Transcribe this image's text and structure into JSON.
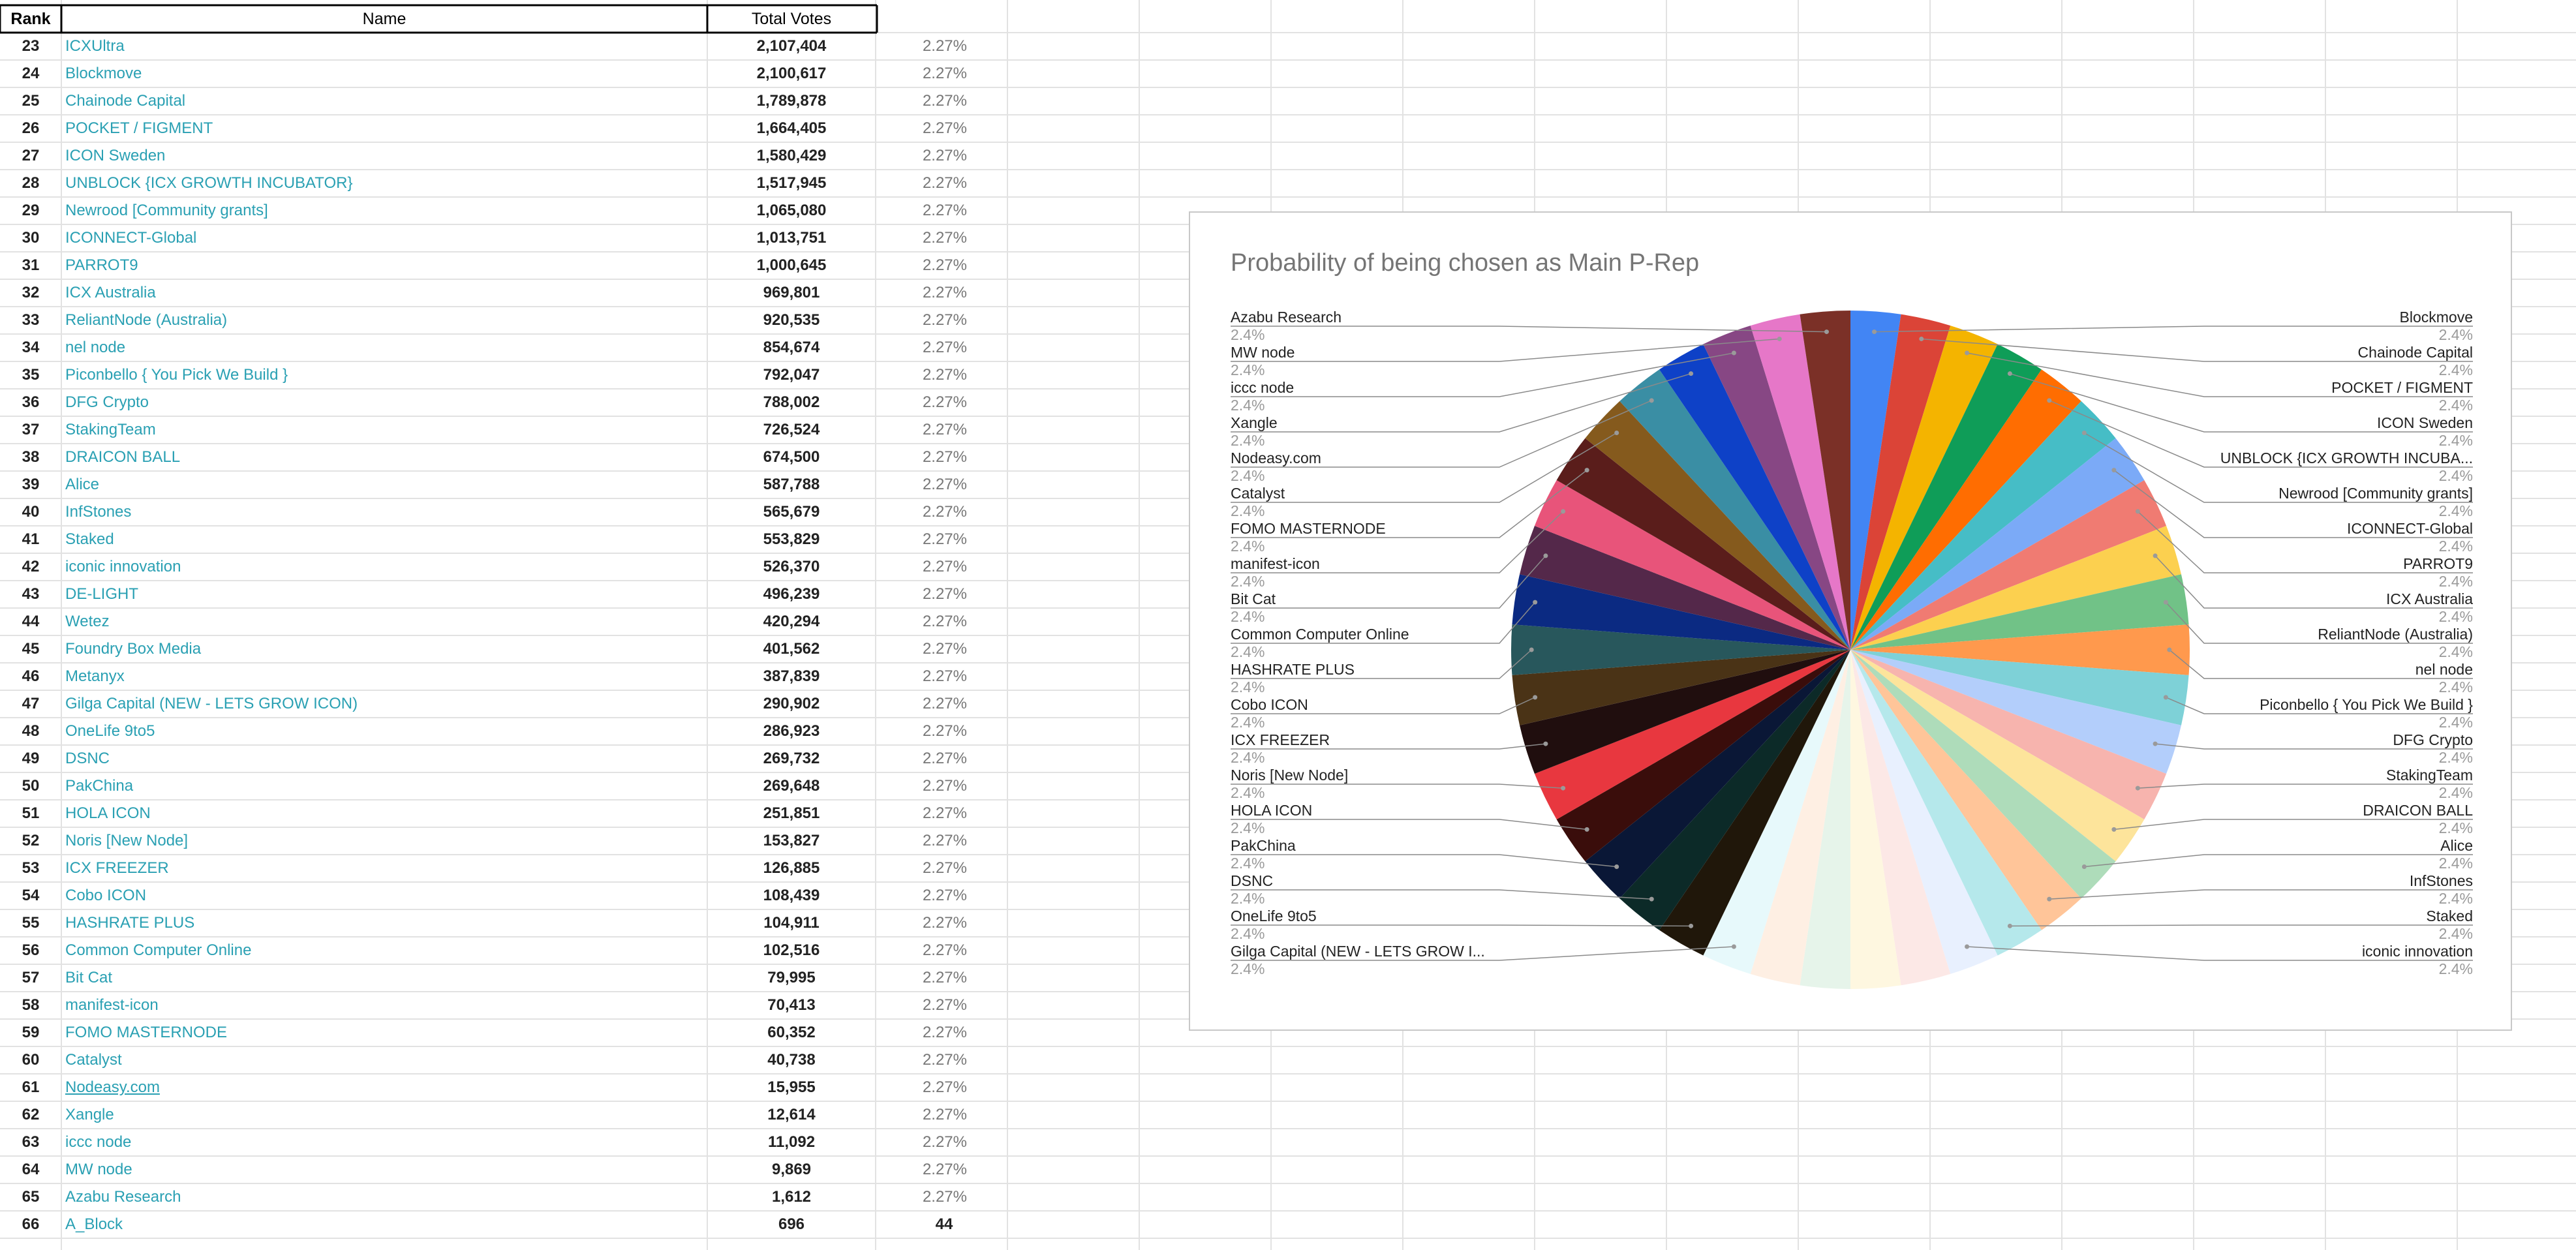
{
  "sheet": {
    "headers": {
      "rank": "Rank",
      "name": "Name",
      "votes": "Total Votes"
    },
    "rows": [
      {
        "rank": "23",
        "name": "ICXUltra",
        "votes": "2,107,404",
        "pct": "2.27%"
      },
      {
        "rank": "24",
        "name": "Blockmove",
        "votes": "2,100,617",
        "pct": "2.27%"
      },
      {
        "rank": "25",
        "name": "Chainode Capital",
        "votes": "1,789,878",
        "pct": "2.27%"
      },
      {
        "rank": "26",
        "name": "POCKET / FIGMENT",
        "votes": "1,664,405",
        "pct": "2.27%"
      },
      {
        "rank": "27",
        "name": "ICON Sweden",
        "votes": "1,580,429",
        "pct": "2.27%"
      },
      {
        "rank": "28",
        "name": "UNBLOCK {ICX GROWTH INCUBATOR}",
        "votes": "1,517,945",
        "pct": "2.27%"
      },
      {
        "rank": "29",
        "name": "Newrood [Community grants]",
        "votes": "1,065,080",
        "pct": "2.27%"
      },
      {
        "rank": "30",
        "name": "ICONNECT-Global",
        "votes": "1,013,751",
        "pct": "2.27%"
      },
      {
        "rank": "31",
        "name": "PARROT9",
        "votes": "1,000,645",
        "pct": "2.27%"
      },
      {
        "rank": "32",
        "name": "ICX Australia",
        "votes": "969,801",
        "pct": "2.27%"
      },
      {
        "rank": "33",
        "name": "ReliantNode (Australia)",
        "votes": "920,535",
        "pct": "2.27%"
      },
      {
        "rank": "34",
        "name": "nel node",
        "votes": "854,674",
        "pct": "2.27%"
      },
      {
        "rank": "35",
        "name": "Piconbello { You Pick We Build }",
        "votes": "792,047",
        "pct": "2.27%"
      },
      {
        "rank": "36",
        "name": "DFG Crypto",
        "votes": "788,002",
        "pct": "2.27%"
      },
      {
        "rank": "37",
        "name": "StakingTeam",
        "votes": "726,524",
        "pct": "2.27%"
      },
      {
        "rank": "38",
        "name": "DRAICON BALL",
        "votes": "674,500",
        "pct": "2.27%"
      },
      {
        "rank": "39",
        "name": "Alice",
        "votes": "587,788",
        "pct": "2.27%"
      },
      {
        "rank": "40",
        "name": "InfStones",
        "votes": "565,679",
        "pct": "2.27%"
      },
      {
        "rank": "41",
        "name": "Staked",
        "votes": "553,829",
        "pct": "2.27%"
      },
      {
        "rank": "42",
        "name": "iconic innovation",
        "votes": "526,370",
        "pct": "2.27%"
      },
      {
        "rank": "43",
        "name": "DE-LIGHT",
        "votes": "496,239",
        "pct": "2.27%"
      },
      {
        "rank": "44",
        "name": "Wetez",
        "votes": "420,294",
        "pct": "2.27%"
      },
      {
        "rank": "45",
        "name": "Foundry Box Media",
        "votes": "401,562",
        "pct": "2.27%"
      },
      {
        "rank": "46",
        "name": "Metanyx",
        "votes": "387,839",
        "pct": "2.27%"
      },
      {
        "rank": "47",
        "name": "Gilga Capital (NEW - LETS GROW ICON)",
        "votes": "290,902",
        "pct": "2.27%"
      },
      {
        "rank": "48",
        "name": "OneLife 9to5",
        "votes": "286,923",
        "pct": "2.27%"
      },
      {
        "rank": "49",
        "name": "DSNC",
        "votes": "269,732",
        "pct": "2.27%"
      },
      {
        "rank": "50",
        "name": "PakChina",
        "votes": "269,648",
        "pct": "2.27%"
      },
      {
        "rank": "51",
        "name": "HOLA ICON",
        "votes": "251,851",
        "pct": "2.27%"
      },
      {
        "rank": "52",
        "name": "Noris [New Node]",
        "votes": "153,827",
        "pct": "2.27%"
      },
      {
        "rank": "53",
        "name": "ICX FREEZER",
        "votes": "126,885",
        "pct": "2.27%"
      },
      {
        "rank": "54",
        "name": "Cobo ICON",
        "votes": "108,439",
        "pct": "2.27%"
      },
      {
        "rank": "55",
        "name": "HASHRATE PLUS",
        "votes": "104,911",
        "pct": "2.27%"
      },
      {
        "rank": "56",
        "name": "Common Computer Online",
        "votes": "102,516",
        "pct": "2.27%"
      },
      {
        "rank": "57",
        "name": "Bit Cat",
        "votes": "79,995",
        "pct": "2.27%"
      },
      {
        "rank": "58",
        "name": "manifest-icon",
        "votes": "70,413",
        "pct": "2.27%"
      },
      {
        "rank": "59",
        "name": "FOMO MASTERNODE",
        "votes": "60,352",
        "pct": "2.27%"
      },
      {
        "rank": "60",
        "name": "Catalyst",
        "votes": "40,738",
        "pct": "2.27%"
      },
      {
        "rank": "61",
        "name": "Nodeasy.com",
        "votes": "15,955",
        "pct": "2.27%",
        "link": true
      },
      {
        "rank": "62",
        "name": "Xangle",
        "votes": "12,614",
        "pct": "2.27%"
      },
      {
        "rank": "63",
        "name": "iccc node",
        "votes": "11,092",
        "pct": "2.27%"
      },
      {
        "rank": "64",
        "name": "MW node",
        "votes": "9,869",
        "pct": "2.27%"
      },
      {
        "rank": "65",
        "name": "Azabu Research",
        "votes": "1,612",
        "pct": "2.27%"
      },
      {
        "rank": "66",
        "name": "A_Block",
        "votes": "696",
        "pct": "44"
      }
    ]
  },
  "chart_data": {
    "type": "pie",
    "title": "Probability of being chosen as Main P-Rep",
    "slice_label": "2.4%",
    "categories": [
      "Blockmove",
      "Chainode Capital",
      "POCKET / FIGMENT",
      "ICON Sweden",
      "UNBLOCK {ICX GROWTH INCUBATOR}",
      "Newrood [Community grants]",
      "ICONNECT-Global",
      "PARROT9",
      "ICX Australia",
      "ReliantNode (Australia)",
      "nel node",
      "Piconbello { You Pick We Build }",
      "DFG Crypto",
      "StakingTeam",
      "DRAICON BALL",
      "Alice",
      "InfStones",
      "Staked",
      "iconic innovation",
      "DE-LIGHT",
      "Wetez",
      "Foundry Box Media",
      "Metanyx",
      "Gilga Capital (NEW - LETS GROW ICON)",
      "OneLife 9to5",
      "DSNC",
      "PakChina",
      "HOLA ICON",
      "Noris [New Node]",
      "ICX FREEZER",
      "Cobo ICON",
      "HASHRATE PLUS",
      "Common Computer Online",
      "Bit Cat",
      "manifest-icon",
      "FOMO MASTERNODE",
      "Catalyst",
      "Nodeasy.com",
      "Xangle",
      "iccc node",
      "MW node",
      "Azabu Research"
    ],
    "values": [
      2.4,
      2.4,
      2.4,
      2.4,
      2.4,
      2.4,
      2.4,
      2.4,
      2.4,
      2.4,
      2.4,
      2.4,
      2.4,
      2.4,
      2.4,
      2.4,
      2.4,
      2.4,
      2.4,
      2.4,
      2.4,
      2.4,
      2.4,
      2.4,
      2.4,
      2.4,
      2.4,
      2.4,
      2.4,
      2.4,
      2.4,
      2.4,
      2.4,
      2.4,
      2.4,
      2.4,
      2.4,
      2.4,
      2.4,
      2.4,
      2.4,
      2.4
    ],
    "colors": [
      "#4285f4",
      "#db4437",
      "#f4b400",
      "#0f9d58",
      "#ff6d01",
      "#46bdc6",
      "#7baaf7",
      "#f07b72",
      "#fcd04f",
      "#71c287",
      "#ff994d",
      "#7ed1d7",
      "#b3cefb",
      "#f7b4ae",
      "#fde49b",
      "#aedcba",
      "#ffc599",
      "#b5e8eb",
      "#e8f0fe",
      "#fce8e6",
      "#fef7e0",
      "#e6f4ea",
      "#feefe3",
      "#e7f9fb",
      "#20170a",
      "#0c2a28",
      "#0a1736",
      "#3a0d0b",
      "#e8373f",
      "#200e0e",
      "#4a3316",
      "#28575c",
      "#0b2a82",
      "#54284a",
      "#e8547a",
      "#5a1d1b",
      "#855a1d",
      "#3a8ea4",
      "#0e41c7",
      "#874784",
      "#e677c8",
      "#7b3027"
    ],
    "left_labels": [
      "Azabu Research",
      "MW node",
      "iccc node",
      "Xangle",
      "Nodeasy.com",
      "Catalyst",
      "FOMO MASTERNODE",
      "manifest-icon",
      "Bit Cat",
      "Common Computer Online",
      "HASHRATE PLUS",
      "Cobo ICON",
      "ICX FREEZER",
      "Noris [New Node]",
      "HOLA ICON",
      "PakChina",
      "DSNC",
      "OneLife 9to5",
      "Gilga Capital (NEW - LETS GROW I..."
    ],
    "right_labels": [
      "Blockmove",
      "Chainode Capital",
      "POCKET / FIGMENT",
      "ICON Sweden",
      "UNBLOCK {ICX GROWTH INCUBA...",
      "Newrood [Community grants]",
      "ICONNECT-Global",
      "PARROT9",
      "ICX Australia",
      "ReliantNode (Australia)",
      "nel node",
      "Piconbello { You Pick We Build }",
      "DFG Crypto",
      "StakingTeam",
      "DRAICON BALL",
      "Alice",
      "InfStones",
      "Staked",
      "iconic innovation"
    ],
    "left_slice_index": [
      41,
      40,
      39,
      38,
      37,
      36,
      35,
      34,
      33,
      32,
      31,
      30,
      29,
      28,
      27,
      26,
      25,
      24,
      23
    ],
    "right_slice_index": [
      0,
      1,
      2,
      3,
      4,
      5,
      6,
      7,
      8,
      9,
      10,
      11,
      12,
      13,
      14,
      15,
      16,
      17,
      18
    ]
  }
}
